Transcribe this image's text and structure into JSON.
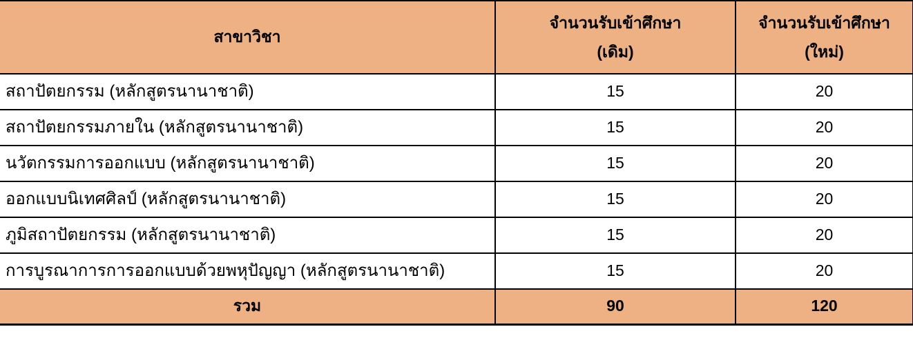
{
  "table": {
    "columns": {
      "major": "สาขาวิชา",
      "old_line1": "จำนวนรับเข้าศึกษา",
      "old_line2": "(เดิม)",
      "new_line1": "จำนวนรับเข้าศึกษา",
      "new_line2": "(ใหม่)"
    },
    "rows": [
      {
        "name": "สถาปัตยกรรม (หลักสูตรนานาชาติ)",
        "old": "15",
        "new": "20"
      },
      {
        "name": "สถาปัตยกรรมภายใน (หลักสูตรนานาชาติ)",
        "old": "15",
        "new": "20"
      },
      {
        "name": "นวัตกรรมการออกแบบ (หลักสูตรนานาชาติ)",
        "old": "15",
        "new": "20"
      },
      {
        "name": "ออกแบบนิเทศศิลป์ (หลักสูตรนานาชาติ)",
        "old": "15",
        "new": "20"
      },
      {
        "name": "ภูมิสถาปัตยกรรม (หลักสูตรนานาชาติ)",
        "old": "15",
        "new": "20"
      },
      {
        "name": "การบูรณาการการออกแบบด้วยพหุปัญญา (หลักสูตรนานาชาติ)",
        "old": "15",
        "new": "20"
      }
    ],
    "footer": {
      "label": "รวม",
      "old": "90",
      "new": "120"
    },
    "colors": {
      "header_bg": "#EEB183",
      "row_bg": "#FFFFFF",
      "border": "#000000",
      "text": "#000000"
    }
  }
}
